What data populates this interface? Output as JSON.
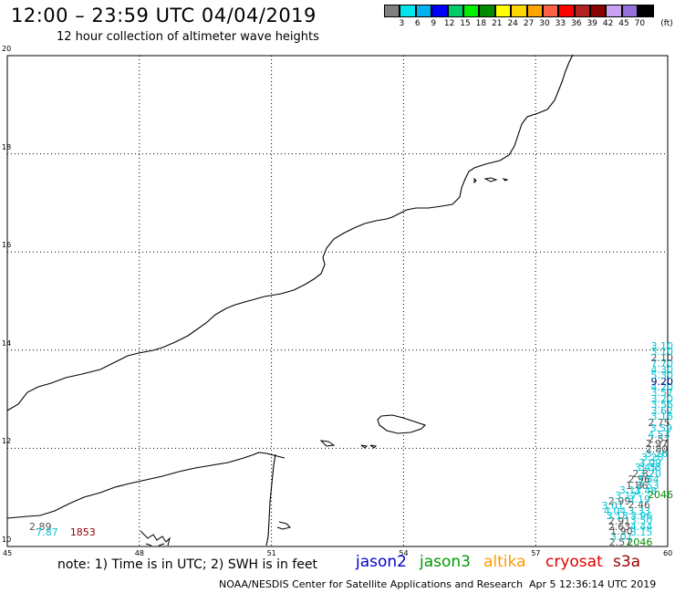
{
  "title": "12:00 – 23:59 UTC 04/04/2019",
  "subtitle": "12 hour collection of altimeter wave heights",
  "color_scale": {
    "unit_label": "(ft)",
    "labels": [
      "3",
      "6",
      "9",
      "12",
      "15",
      "18",
      "21",
      "24",
      "27",
      "30",
      "33",
      "36",
      "39",
      "42",
      "45",
      "70"
    ],
    "colors": [
      "#808080",
      "#00e5ee",
      "#00b2ee",
      "#0000ff",
      "#00cd66",
      "#00ee00",
      "#008b00",
      "#ffff00",
      "#ffd700",
      "#ffa500",
      "#ff6347",
      "#ff0000",
      "#b22222",
      "#8b0000",
      "#c8a2f0",
      "#9370db",
      "#000000"
    ]
  },
  "axes": {
    "x_ticks": [
      "45",
      "48",
      "51",
      "54",
      "57",
      "60"
    ],
    "y_ticks": [
      "10",
      "12",
      "14",
      "16",
      "18",
      "20"
    ],
    "x_range": [
      45,
      60
    ],
    "y_range": [
      10,
      20
    ]
  },
  "note": "note: 1) Time is in UTC; 2) SWH is in feet",
  "satellites": [
    {
      "name": "jason2",
      "color": "#0000cd"
    },
    {
      "name": "jason3",
      "color": "#009900"
    },
    {
      "name": "altika",
      "color": "#ff9900"
    },
    {
      "name": "cryosat",
      "color": "#e00000"
    },
    {
      "name": "s3a",
      "color": "#990000"
    }
  ],
  "credit": "NOAA/NESDIS Center for Satellite Applications and Research",
  "credit_time": "Apr  5 12:36:14 UTC 2019",
  "observations": [
    {
      "value": "2.89",
      "lon": 45.55,
      "lat": 10.32,
      "color": "#555555"
    },
    {
      "value": "7.87",
      "lon": 45.7,
      "lat": 10.2,
      "color": "#00c5d6"
    },
    {
      "value": "1853",
      "lon": 46.55,
      "lat": 10.2,
      "color": "#8b0000"
    },
    {
      "value": "2.57",
      "lon": 58.72,
      "lat": 10.0,
      "color": "#555555"
    },
    {
      "value": "2046",
      "lon": 59.2,
      "lat": 10.0,
      "color": "#008b00"
    },
    {
      "value": "3.01",
      "lon": 58.75,
      "lat": 10.12,
      "color": "#00c5d6"
    },
    {
      "value": "1.90",
      "lon": 58.75,
      "lat": 10.22,
      "color": "#555555"
    },
    {
      "value": "3.15",
      "lon": 59.2,
      "lat": 10.2,
      "color": "#00c5d6"
    },
    {
      "value": "2.63",
      "lon": 58.7,
      "lat": 10.32,
      "color": "#555555"
    },
    {
      "value": "4.44",
      "lon": 59.2,
      "lat": 10.32,
      "color": "#00c5d6"
    },
    {
      "value": "2.91",
      "lon": 58.7,
      "lat": 10.42,
      "color": "#555555"
    },
    {
      "value": "3.50",
      "lon": 59.2,
      "lat": 10.44,
      "color": "#00c5d6"
    },
    {
      "value": "3.18",
      "lon": 58.65,
      "lat": 10.54,
      "color": "#00c5d6"
    },
    {
      "value": "3.96",
      "lon": 59.2,
      "lat": 10.54,
      "color": "#00c5d6"
    },
    {
      "value": "4.04",
      "lon": 58.6,
      "lat": 10.64,
      "color": "#00c5d6"
    },
    {
      "value": "3.33",
      "lon": 59.15,
      "lat": 10.64,
      "color": "#00c5d6"
    },
    {
      "value": "3.01",
      "lon": 58.55,
      "lat": 10.74,
      "color": "#00c5d6"
    },
    {
      "value": "2.46",
      "lon": 59.15,
      "lat": 10.76,
      "color": "#555555"
    },
    {
      "value": "2.99",
      "lon": 58.7,
      "lat": 10.84,
      "color": "#555555"
    },
    {
      "value": "3.17",
      "lon": 58.85,
      "lat": 10.94,
      "color": "#00c5d6"
    },
    {
      "value": "3.19",
      "lon": 59.15,
      "lat": 10.88,
      "color": "#00c5d6"
    },
    {
      "value": "3.11",
      "lon": 58.95,
      "lat": 11.06,
      "color": "#00c5d6"
    },
    {
      "value": "3.48",
      "lon": 59.3,
      "lat": 11.04,
      "color": "#00c5d6"
    },
    {
      "value": "2046",
      "lon": 60.0,
      "lat": 10.96,
      "color": "#008b00"
    },
    {
      "value": "1.86",
      "lon": 59.1,
      "lat": 11.16,
      "color": "#555555"
    },
    {
      "value": "3.53",
      "lon": 59.35,
      "lat": 11.16,
      "color": "#00c5d6"
    },
    {
      "value": "2.96",
      "lon": 59.15,
      "lat": 11.28,
      "color": "#555555"
    },
    {
      "value": "3.64",
      "lon": 59.35,
      "lat": 11.28,
      "color": "#00c5d6"
    },
    {
      "value": "2.82",
      "lon": 59.25,
      "lat": 11.4,
      "color": "#555555"
    },
    {
      "value": "3.20",
      "lon": 59.4,
      "lat": 11.4,
      "color": "#00c5d6"
    },
    {
      "value": "3.45",
      "lon": 59.3,
      "lat": 11.52,
      "color": "#00c5d6"
    },
    {
      "value": "3.38",
      "lon": 59.4,
      "lat": 11.52,
      "color": "#00c5d6"
    },
    {
      "value": "3.09",
      "lon": 59.4,
      "lat": 11.62,
      "color": "#00c5d6"
    },
    {
      "value": "3.28",
      "lon": 59.45,
      "lat": 11.72,
      "color": "#00c5d6"
    },
    {
      "value": "3.26",
      "lon": 59.55,
      "lat": 11.8,
      "color": "#00c5d6"
    },
    {
      "value": "2.80",
      "lon": 59.55,
      "lat": 11.9,
      "color": "#555555"
    },
    {
      "value": "2.97",
      "lon": 59.55,
      "lat": 12.0,
      "color": "#555555"
    },
    {
      "value": "2.57",
      "lon": 59.6,
      "lat": 12.1,
      "color": "#555555"
    },
    {
      "value": "4.53",
      "lon": 59.6,
      "lat": 12.2,
      "color": "#00c5d6"
    },
    {
      "value": "3.59",
      "lon": 59.65,
      "lat": 12.32,
      "color": "#00c5d6"
    },
    {
      "value": "2.75",
      "lon": 59.6,
      "lat": 12.44,
      "color": "#555555"
    },
    {
      "value": "3.16",
      "lon": 59.7,
      "lat": 12.56,
      "color": "#00c5d6"
    },
    {
      "value": "3.62",
      "lon": 59.75,
      "lat": 12.68,
      "color": "#00c5d6"
    },
    {
      "value": "3.56",
      "lon": 59.75,
      "lat": 12.8,
      "color": "#00c5d6"
    },
    {
      "value": "3.20",
      "lon": 59.75,
      "lat": 12.92,
      "color": "#00c5d6"
    },
    {
      "value": "3.57",
      "lon": 59.8,
      "lat": 13.04,
      "color": "#00c5d6"
    },
    {
      "value": "4.20",
      "lon": 59.8,
      "lat": 13.16,
      "color": "#00c5d6"
    },
    {
      "value": "9.20",
      "lon": 59.85,
      "lat": 13.28,
      "color": "#00008b"
    },
    {
      "value": "5.30",
      "lon": 59.85,
      "lat": 13.4,
      "color": "#00c5d6"
    },
    {
      "value": "4.30",
      "lon": 59.85,
      "lat": 13.52,
      "color": "#00c5d6"
    },
    {
      "value": "7.70",
      "lon": 59.85,
      "lat": 13.64,
      "color": "#00c5d6"
    },
    {
      "value": "2.10",
      "lon": 59.85,
      "lat": 13.76,
      "color": "#555555"
    },
    {
      "value": "3.10",
      "lon": 59.85,
      "lat": 13.88,
      "color": "#00c5d6"
    },
    {
      "value": "3.10",
      "lon": 59.9,
      "lat": 14.0,
      "color": "#00c5d6"
    }
  ]
}
